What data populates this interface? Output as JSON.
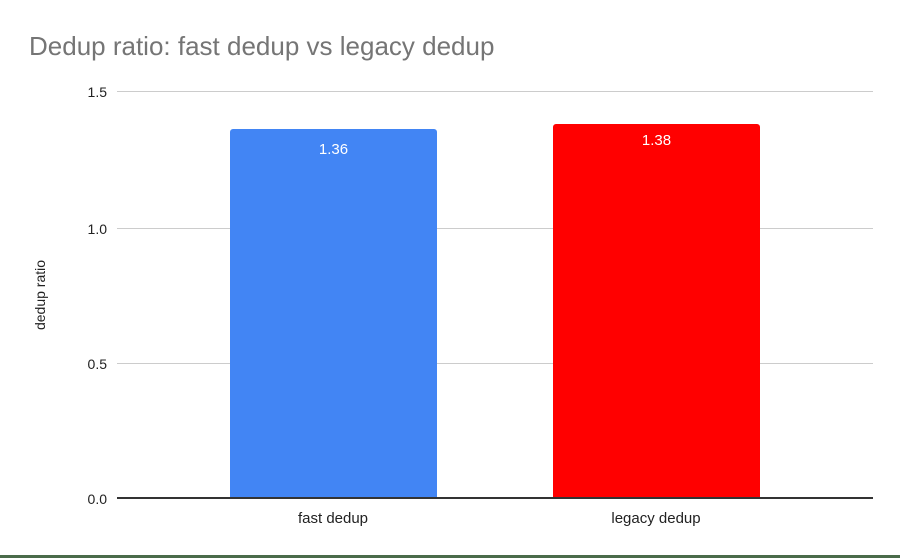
{
  "chart_data": {
    "type": "bar",
    "title": "Dedup ratio: fast dedup vs legacy dedup",
    "xlabel": "",
    "ylabel": "dedup ratio",
    "categories": [
      "fast dedup",
      "legacy dedup"
    ],
    "values": [
      1.36,
      1.38
    ],
    "data_labels": [
      "1.36",
      "1.38"
    ],
    "colors": [
      "#4285f4",
      "#ff0000"
    ],
    "ylim": [
      0,
      1.5
    ],
    "yticks": [
      "0.0",
      "0.5",
      "1.0",
      "1.5"
    ],
    "grid": true,
    "legend": "none"
  }
}
